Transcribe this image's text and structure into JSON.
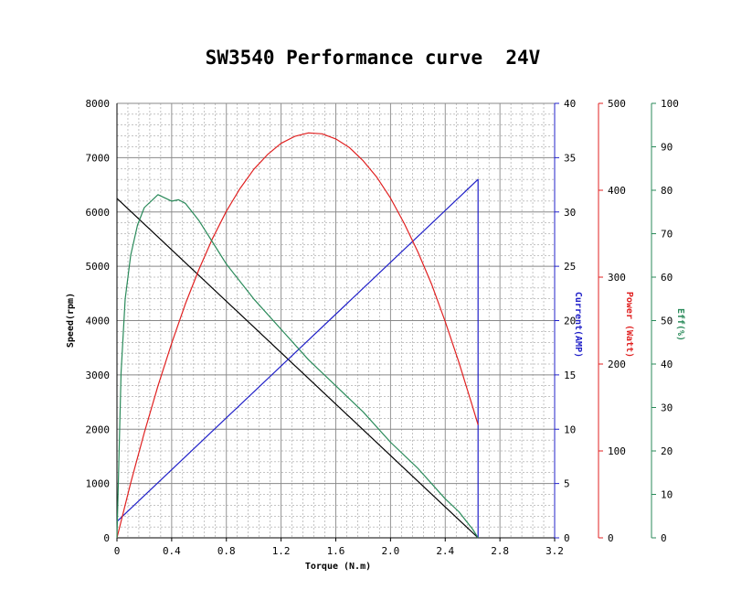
{
  "chart_data": {
    "type": "line",
    "title": "SW3540 Performance curve  24V",
    "xlabel": "Torque (N.m)",
    "xlim": [
      0,
      3.2
    ],
    "x_ticks": [
      "0",
      "0.4",
      "0.8",
      "1.2",
      "1.6",
      "2.0",
      "2.4",
      "2.8",
      "3.2"
    ],
    "grid": true,
    "colors": {
      "speed": "#000000",
      "current": "#2020c8",
      "power": "#e02020",
      "efficiency": "#2a8a5a",
      "grid": "#888888"
    },
    "axes": [
      {
        "id": "speed",
        "side": "left",
        "label": "Speed(rpm)",
        "ylim": [
          0,
          8000
        ],
        "ticks": [
          "0",
          "1000",
          "2000",
          "3000",
          "4000",
          "5000",
          "6000",
          "7000",
          "8000"
        ]
      },
      {
        "id": "current",
        "side": "right",
        "label": "Current(AMP)",
        "ylim": [
          0,
          40
        ],
        "ticks": [
          "0",
          "5",
          "10",
          "15",
          "20",
          "25",
          "30",
          "35",
          "40"
        ]
      },
      {
        "id": "power",
        "side": "right",
        "label": "Power (Watt)",
        "ylim": [
          0,
          500
        ],
        "ticks": [
          "0",
          "100",
          "200",
          "300",
          "400",
          "500"
        ]
      },
      {
        "id": "efficiency",
        "side": "right",
        "label": "Eff(%)",
        "ylim": [
          0,
          100
        ],
        "ticks": [
          "0",
          "10",
          "20",
          "30",
          "40",
          "50",
          "60",
          "70",
          "80",
          "90",
          "100"
        ]
      }
    ],
    "series": [
      {
        "id": "speed",
        "axis": "speed",
        "x": [
          0,
          2.64
        ],
        "y": [
          6250,
          0
        ]
      },
      {
        "id": "current",
        "axis": "current",
        "x": [
          0,
          2.64,
          2.64
        ],
        "y": [
          1.5,
          33,
          0
        ]
      },
      {
        "id": "power",
        "axis": "power",
        "x": [
          0,
          0.1,
          0.2,
          0.3,
          0.4,
          0.5,
          0.6,
          0.7,
          0.8,
          0.9,
          1.0,
          1.1,
          1.2,
          1.3,
          1.4,
          1.5,
          1.6,
          1.7,
          1.8,
          1.9,
          2.0,
          2.1,
          2.2,
          2.3,
          2.4,
          2.5,
          2.6,
          2.64
        ],
        "y": [
          0,
          63,
          121,
          175,
          224,
          269,
          309,
          345,
          376,
          402,
          424,
          441,
          454,
          462,
          466,
          465,
          459,
          449,
          434,
          415,
          391,
          362,
          329,
          292,
          249,
          202,
          151,
          130
        ]
      },
      {
        "id": "efficiency",
        "axis": "efficiency",
        "x": [
          0,
          0.03,
          0.06,
          0.1,
          0.15,
          0.2,
          0.3,
          0.4,
          0.45,
          0.5,
          0.6,
          0.7,
          0.8,
          1.0,
          1.2,
          1.4,
          1.6,
          1.8,
          2.0,
          2.2,
          2.4,
          2.5,
          2.6,
          2.64
        ],
        "y": [
          0,
          38,
          55,
          65,
          72,
          76,
          79,
          77.5,
          77.8,
          77,
          73,
          68,
          63,
          55,
          48,
          41,
          35,
          29,
          22,
          16,
          9,
          6,
          2,
          0
        ]
      }
    ]
  }
}
